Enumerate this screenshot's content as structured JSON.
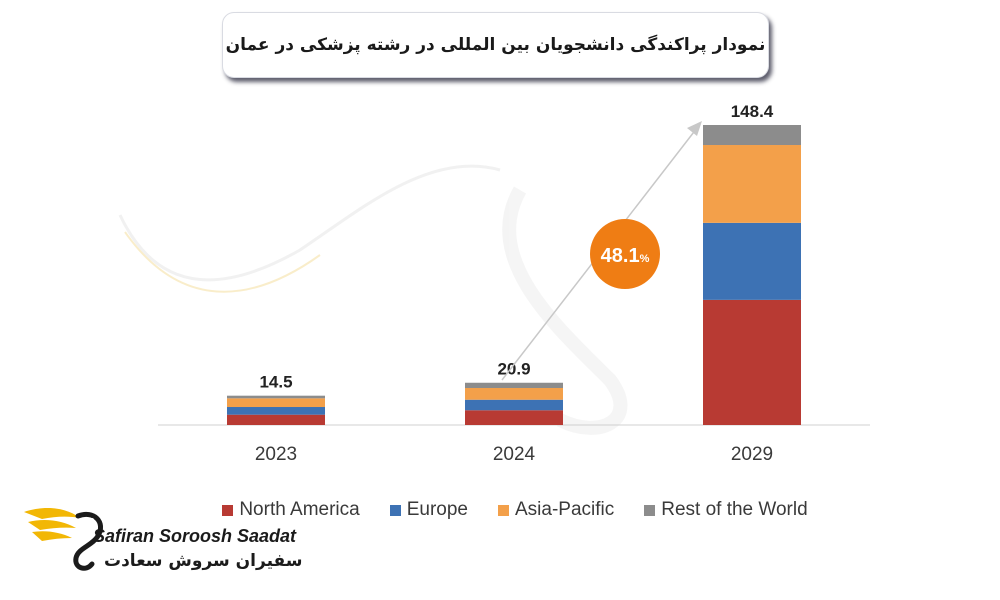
{
  "chart_data": {
    "type": "bar",
    "stacked": true,
    "title": "نمودار پراکندگی دانشجویان بین المللی در رشته پزشکی در عمان",
    "categories": [
      "2023",
      "2024",
      "2029"
    ],
    "totals": [
      14.5,
      20.9,
      148.4
    ],
    "total_labels": [
      "14.5",
      "20.9",
      "148.4"
    ],
    "series": [
      {
        "name": "North America",
        "color": "#b83a33",
        "values": [
          5.1,
          7.3,
          61.9
        ]
      },
      {
        "name": "Europe",
        "color": "#3d72b4",
        "values": [
          3.8,
          5.2,
          38.1
        ]
      },
      {
        "name": "Asia-Pacific",
        "color": "#f3a04a",
        "values": [
          4.3,
          5.8,
          38.5
        ]
      },
      {
        "name": "Rest of the World",
        "color": "#8c8c8c",
        "values": [
          1.3,
          2.6,
          9.9
        ]
      }
    ],
    "annotation": {
      "value": "48.1",
      "unit": "%",
      "color": "#ef7d14"
    },
    "legend_position": "bottom",
    "grid": false
  },
  "logo": {
    "name_en": "Safiran Soroosh Saadat",
    "name_fa": "سفیران سروش سعادت",
    "color": "#f2b705"
  }
}
